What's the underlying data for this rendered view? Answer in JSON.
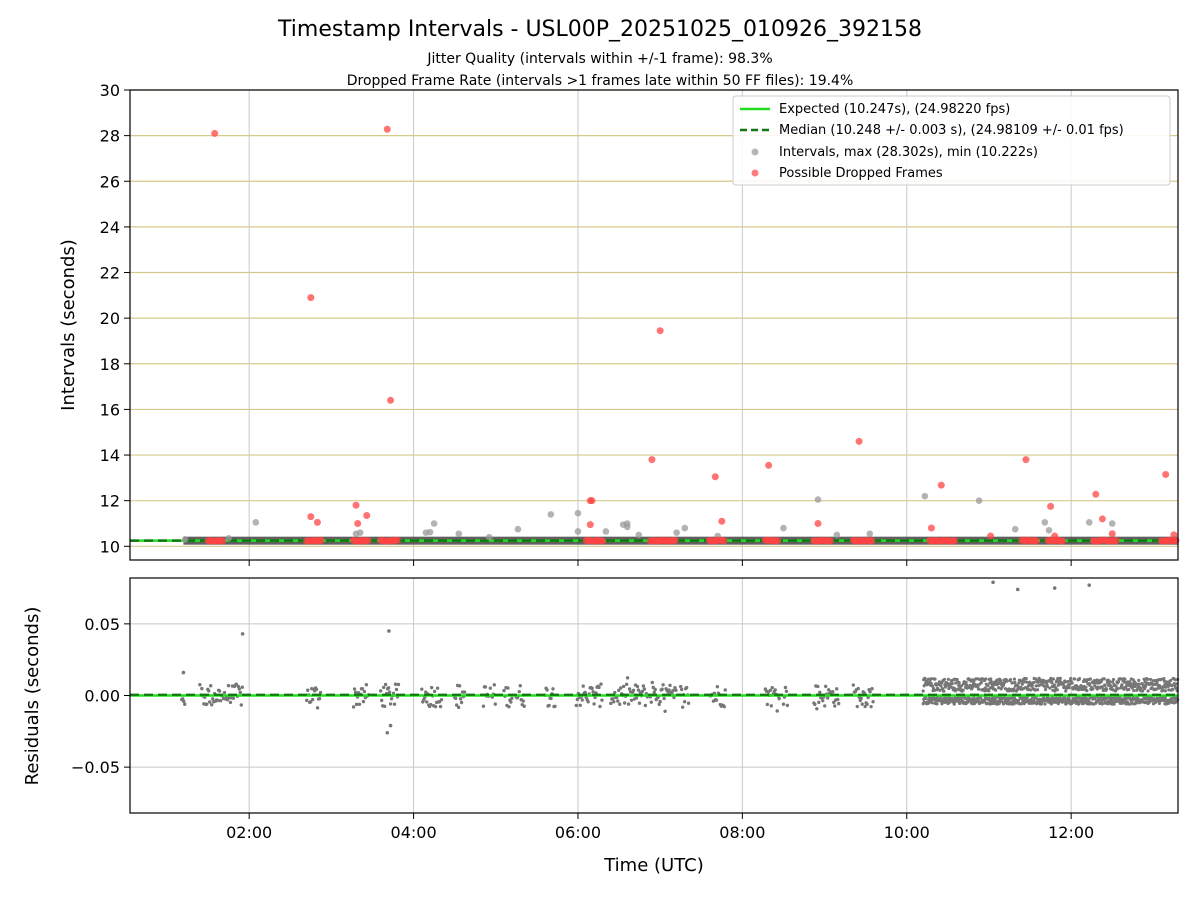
{
  "chart_data": [
    {
      "type": "scatter",
      "panel": "intervals",
      "title": "Timestamp Intervals - USL00P_20251025_010926_392158",
      "subtitle_lines": [
        "Jitter Quality (intervals within +/-1 frame): 98.3%",
        "Dropped Frame Rate (intervals >1 frames late within 50 FF files): 19.4%"
      ],
      "ylabel": "Intervals (seconds)",
      "xlim": [
        0.55,
        13.3
      ],
      "ylim": [
        9.4,
        30
      ],
      "yticks": [
        10,
        12,
        14,
        16,
        18,
        20,
        22,
        24,
        26,
        28,
        30
      ],
      "ytick_labels": [
        "10",
        "12",
        "14",
        "16",
        "18",
        "20",
        "22",
        "24",
        "26",
        "28",
        "30"
      ],
      "grid": true,
      "legend_position": "top-right",
      "expected_line": {
        "value": 10.247,
        "color": "#22dd22",
        "legend": "Expected (10.247s), (24.98220 fps)"
      },
      "median_line": {
        "value": 10.248,
        "color": "#117711",
        "legend": "Median (10.248 +/- 0.003 s), (24.98109 +/- 0.01 fps)"
      },
      "intervals_series": {
        "legend": "Intervals, max (28.302s), min (10.222s)",
        "color": "#999999",
        "points": [
          [
            1.22,
            10.3
          ],
          [
            1.75,
            10.35
          ],
          [
            2.08,
            11.05
          ],
          [
            3.3,
            10.55
          ],
          [
            3.35,
            10.6
          ],
          [
            4.15,
            10.6
          ],
          [
            4.2,
            10.62
          ],
          [
            4.25,
            11.0
          ],
          [
            4.55,
            10.55
          ],
          [
            4.92,
            10.4
          ],
          [
            5.27,
            10.75
          ],
          [
            5.67,
            11.4
          ],
          [
            6.0,
            11.45
          ],
          [
            6.0,
            10.65
          ],
          [
            6.34,
            10.65
          ],
          [
            6.55,
            10.95
          ],
          [
            6.6,
            10.85
          ],
          [
            6.6,
            11.0
          ],
          [
            6.74,
            10.5
          ],
          [
            7.2,
            10.6
          ],
          [
            7.3,
            10.8
          ],
          [
            7.7,
            10.45
          ],
          [
            8.5,
            10.8
          ],
          [
            8.92,
            12.05
          ],
          [
            9.15,
            10.5
          ],
          [
            9.55,
            10.55
          ],
          [
            10.22,
            12.2
          ],
          [
            10.88,
            12.0
          ],
          [
            11.32,
            10.75
          ],
          [
            11.68,
            11.05
          ],
          [
            11.73,
            10.7
          ],
          [
            12.22,
            11.05
          ],
          [
            12.5,
            11.0
          ]
        ]
      },
      "dropped_series": {
        "legend": "Possible Dropped Frames",
        "color": "#ff4444",
        "points": [
          [
            1.58,
            28.1
          ],
          [
            2.75,
            20.9
          ],
          [
            2.75,
            11.3
          ],
          [
            2.83,
            11.05
          ],
          [
            3.3,
            11.8
          ],
          [
            3.32,
            11.0
          ],
          [
            3.43,
            11.35
          ],
          [
            3.68,
            28.28
          ],
          [
            3.72,
            16.4
          ],
          [
            6.15,
            12.0
          ],
          [
            6.17,
            12.0
          ],
          [
            6.15,
            10.95
          ],
          [
            6.9,
            13.8
          ],
          [
            7.0,
            19.45
          ],
          [
            7.67,
            13.05
          ],
          [
            7.75,
            11.1
          ],
          [
            8.32,
            13.55
          ],
          [
            8.92,
            11.0
          ],
          [
            9.42,
            14.6
          ],
          [
            10.3,
            10.8
          ],
          [
            10.42,
            12.68
          ],
          [
            11.02,
            10.45
          ],
          [
            11.45,
            13.8
          ],
          [
            11.75,
            11.75
          ],
          [
            11.8,
            10.45
          ],
          [
            12.3,
            12.28
          ],
          [
            12.38,
            11.2
          ],
          [
            12.5,
            10.55
          ],
          [
            13.15,
            13.15
          ],
          [
            13.25,
            10.5
          ]
        ],
        "clusters": [
          [
            1.5,
            1.68
          ],
          [
            2.7,
            2.88
          ],
          [
            3.27,
            3.45
          ],
          [
            3.6,
            3.82
          ],
          [
            6.1,
            6.32
          ],
          [
            6.88,
            7.2
          ],
          [
            7.6,
            7.8
          ],
          [
            8.28,
            8.45
          ],
          [
            8.87,
            9.08
          ],
          [
            9.35,
            9.6
          ],
          [
            10.28,
            10.6
          ],
          [
            11.4,
            11.6
          ],
          [
            11.72,
            11.9
          ],
          [
            12.27,
            12.55
          ],
          [
            13.1,
            13.3
          ]
        ]
      }
    },
    {
      "type": "scatter",
      "panel": "residuals",
      "xlabel": "Time (UTC)",
      "ylabel": "Residuals (seconds)",
      "xlim": [
        0.55,
        13.3
      ],
      "ylim": [
        -0.082,
        0.082
      ],
      "yticks": [
        -0.05,
        0.0,
        0.05
      ],
      "ytick_labels": [
        "−0.05",
        "0.00",
        "0.05"
      ],
      "xticks": [
        2,
        4,
        6,
        8,
        10,
        12
      ],
      "xtick_labels": [
        "02:00",
        "04:00",
        "06:00",
        "08:00",
        "10:00",
        "12:00"
      ],
      "grid": true,
      "zero_line_color": "#22dd22",
      "median_line_color": "#117711",
      "residuals_color": "#777777",
      "dense_residual_window": [
        10.2,
        13.3
      ],
      "residual_clusters": [
        [
          1.18,
          1.22
        ],
        [
          1.4,
          1.92
        ],
        [
          2.7,
          2.88
        ],
        [
          3.27,
          3.45
        ],
        [
          3.6,
          3.82
        ],
        [
          4.1,
          4.35
        ],
        [
          4.5,
          4.62
        ],
        [
          4.85,
          5.0
        ],
        [
          5.1,
          5.2
        ],
        [
          5.25,
          5.35
        ],
        [
          5.6,
          5.72
        ],
        [
          5.98,
          6.3
        ],
        [
          6.4,
          6.85
        ],
        [
          6.88,
          7.2
        ],
        [
          7.25,
          7.35
        ],
        [
          7.6,
          7.8
        ],
        [
          8.28,
          8.45
        ],
        [
          8.5,
          8.55
        ],
        [
          8.87,
          9.08
        ],
        [
          9.1,
          9.18
        ],
        [
          9.35,
          9.6
        ]
      ],
      "outliers": [
        [
          1.2,
          0.016
        ],
        [
          1.92,
          0.043
        ],
        [
          3.7,
          0.045
        ],
        [
          3.68,
          -0.026
        ],
        [
          3.72,
          -0.021
        ],
        [
          11.05,
          0.079
        ],
        [
          11.35,
          0.074
        ],
        [
          11.8,
          0.075
        ],
        [
          12.22,
          0.077
        ]
      ]
    }
  ]
}
